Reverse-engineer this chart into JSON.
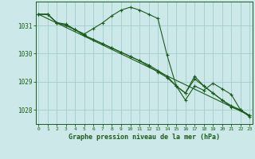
{
  "title": "Graphe pression niveau de la mer (hPa)",
  "bg_color": "#cce8e8",
  "grid_color": "#a0cccc",
  "line_color": "#1a5c1a",
  "x_ticks": [
    0,
    1,
    2,
    3,
    4,
    5,
    6,
    7,
    8,
    9,
    10,
    11,
    12,
    13,
    14,
    15,
    16,
    17,
    18,
    19,
    20,
    21,
    22,
    23
  ],
  "y_ticks": [
    1028,
    1029,
    1030,
    1031
  ],
  "ylim": [
    1027.5,
    1031.85
  ],
  "xlim": [
    -0.3,
    23.3
  ],
  "series": [
    {
      "name": "straight_trend",
      "x": [
        0,
        23
      ],
      "y": [
        1031.4,
        1027.8
      ],
      "has_markers": false
    },
    {
      "name": "main_peaked",
      "x": [
        0,
        1,
        2,
        3,
        4,
        5,
        6,
        7,
        8,
        9,
        10,
        11,
        12,
        13,
        14,
        15,
        16,
        17,
        18,
        19,
        20,
        21,
        22,
        23
      ],
      "y": [
        1031.4,
        1031.4,
        1031.1,
        1031.05,
        1030.85,
        1030.7,
        1030.9,
        1031.1,
        1031.35,
        1031.55,
        1031.65,
        1031.55,
        1031.4,
        1031.25,
        1029.95,
        1028.85,
        1028.35,
        1028.85,
        1028.7,
        1028.95,
        1028.75,
        1028.55,
        1028.0,
        1027.75
      ],
      "has_markers": true
    },
    {
      "name": "mid_line",
      "x": [
        0,
        1,
        2,
        3,
        4,
        5,
        6,
        7,
        8,
        9,
        10,
        11,
        12,
        13,
        14,
        15,
        16,
        17,
        18,
        19,
        20,
        21,
        22,
        23
      ],
      "y": [
        1031.4,
        1031.4,
        1031.1,
        1031.0,
        1030.85,
        1030.65,
        1030.5,
        1030.35,
        1030.2,
        1030.05,
        1029.9,
        1029.75,
        1029.55,
        1029.35,
        1029.15,
        1028.85,
        1028.6,
        1029.1,
        1028.85,
        1028.6,
        1028.35,
        1028.1,
        1028.0,
        1027.8
      ],
      "has_markers": true
    },
    {
      "name": "lower_line",
      "x": [
        0,
        1,
        2,
        3,
        4,
        5,
        6,
        7,
        8,
        9,
        10,
        11,
        12,
        13,
        14,
        15,
        16,
        17,
        18,
        19,
        20,
        21,
        22,
        23
      ],
      "y": [
        1031.4,
        1031.4,
        1031.1,
        1031.0,
        1030.85,
        1030.65,
        1030.5,
        1030.35,
        1030.2,
        1030.05,
        1029.9,
        1029.75,
        1029.6,
        1029.4,
        1029.2,
        1028.85,
        1028.6,
        1029.2,
        1028.85,
        1028.6,
        1028.35,
        1028.15,
        1028.0,
        1027.8
      ],
      "has_markers": true
    }
  ]
}
